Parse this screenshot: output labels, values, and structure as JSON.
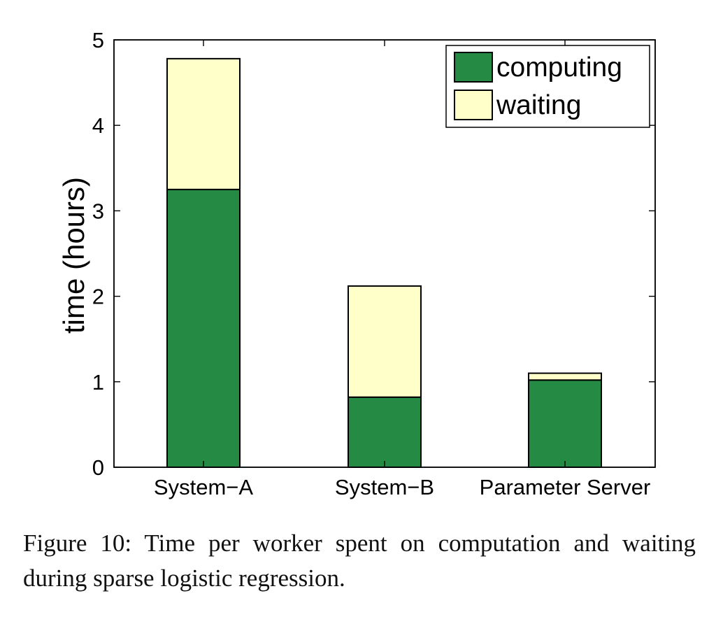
{
  "chart_data": {
    "type": "bar",
    "stacked": true,
    "categories": [
      "System−A",
      "System−B",
      "Parameter Server"
    ],
    "series": [
      {
        "name": "computing",
        "values": [
          3.25,
          0.82,
          1.02
        ],
        "color": "#258a44"
      },
      {
        "name": "waiting",
        "values": [
          1.53,
          1.3,
          0.08
        ],
        "color": "#ffffc9"
      }
    ],
    "xlabel": "",
    "ylabel": "time (hours)",
    "ylim": [
      0,
      5
    ],
    "yticks": [
      "0",
      "1",
      "2",
      "3",
      "4",
      "5"
    ],
    "legend_position": "top-right",
    "grid": false
  },
  "caption": {
    "text": "Figure 10:  Time per worker spent on computation and waiting during sparse logistic regression."
  }
}
